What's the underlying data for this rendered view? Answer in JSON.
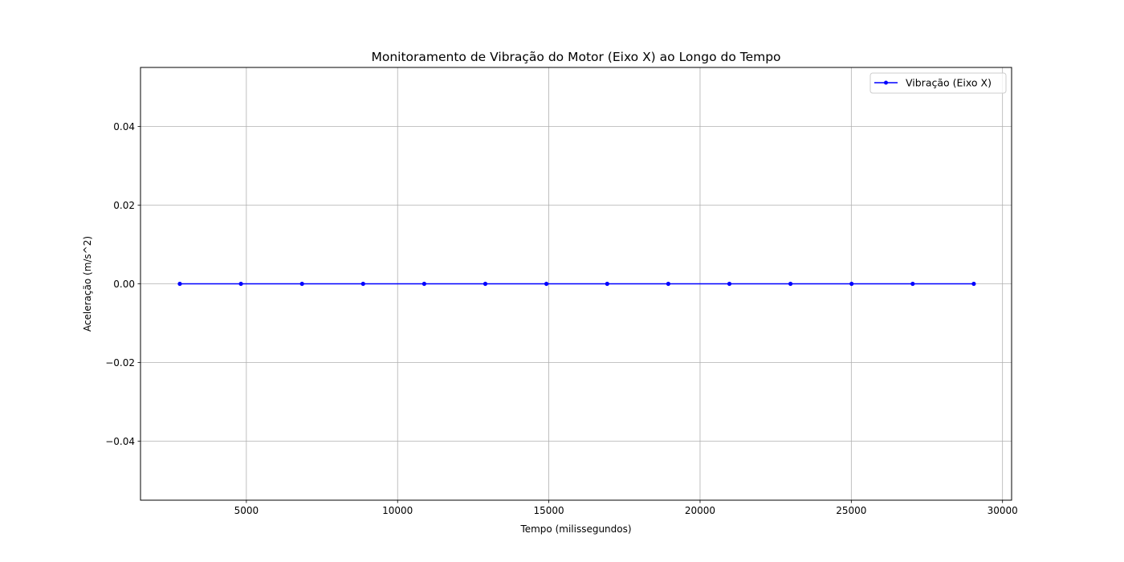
{
  "chart_data": {
    "type": "line",
    "title": "Monitoramento de Vibração do Motor (Eixo X) ao Longo do Tempo",
    "xlabel": "Tempo (milissegundos)",
    "ylabel": "Aceleração (m/s^2)",
    "xlim": [
      1500,
      30300
    ],
    "ylim": [
      -0.055,
      0.055
    ],
    "xticks": [
      5000,
      10000,
      15000,
      20000,
      25000,
      30000
    ],
    "xtick_labels": [
      "5000",
      "10000",
      "15000",
      "20000",
      "25000",
      "30000"
    ],
    "yticks": [
      0.04,
      0.02,
      0.0,
      -0.02,
      -0.04
    ],
    "ytick_labels": [
      "0.04",
      "0.02",
      "0.00",
      "−0.02",
      "−0.04"
    ],
    "grid": true,
    "legend_position": "top-right",
    "series": [
      {
        "name": "Vibração (Eixo X)",
        "color": "#0000ff",
        "marker": "dot",
        "x": [
          2800,
          4820,
          6840,
          8860,
          10880,
          12900,
          14920,
          16930,
          18950,
          20970,
          22990,
          25010,
          27030,
          29050
        ],
        "y": [
          0,
          0,
          0,
          0,
          0,
          0,
          0,
          0,
          0,
          0,
          0,
          0,
          0,
          0
        ]
      }
    ]
  }
}
